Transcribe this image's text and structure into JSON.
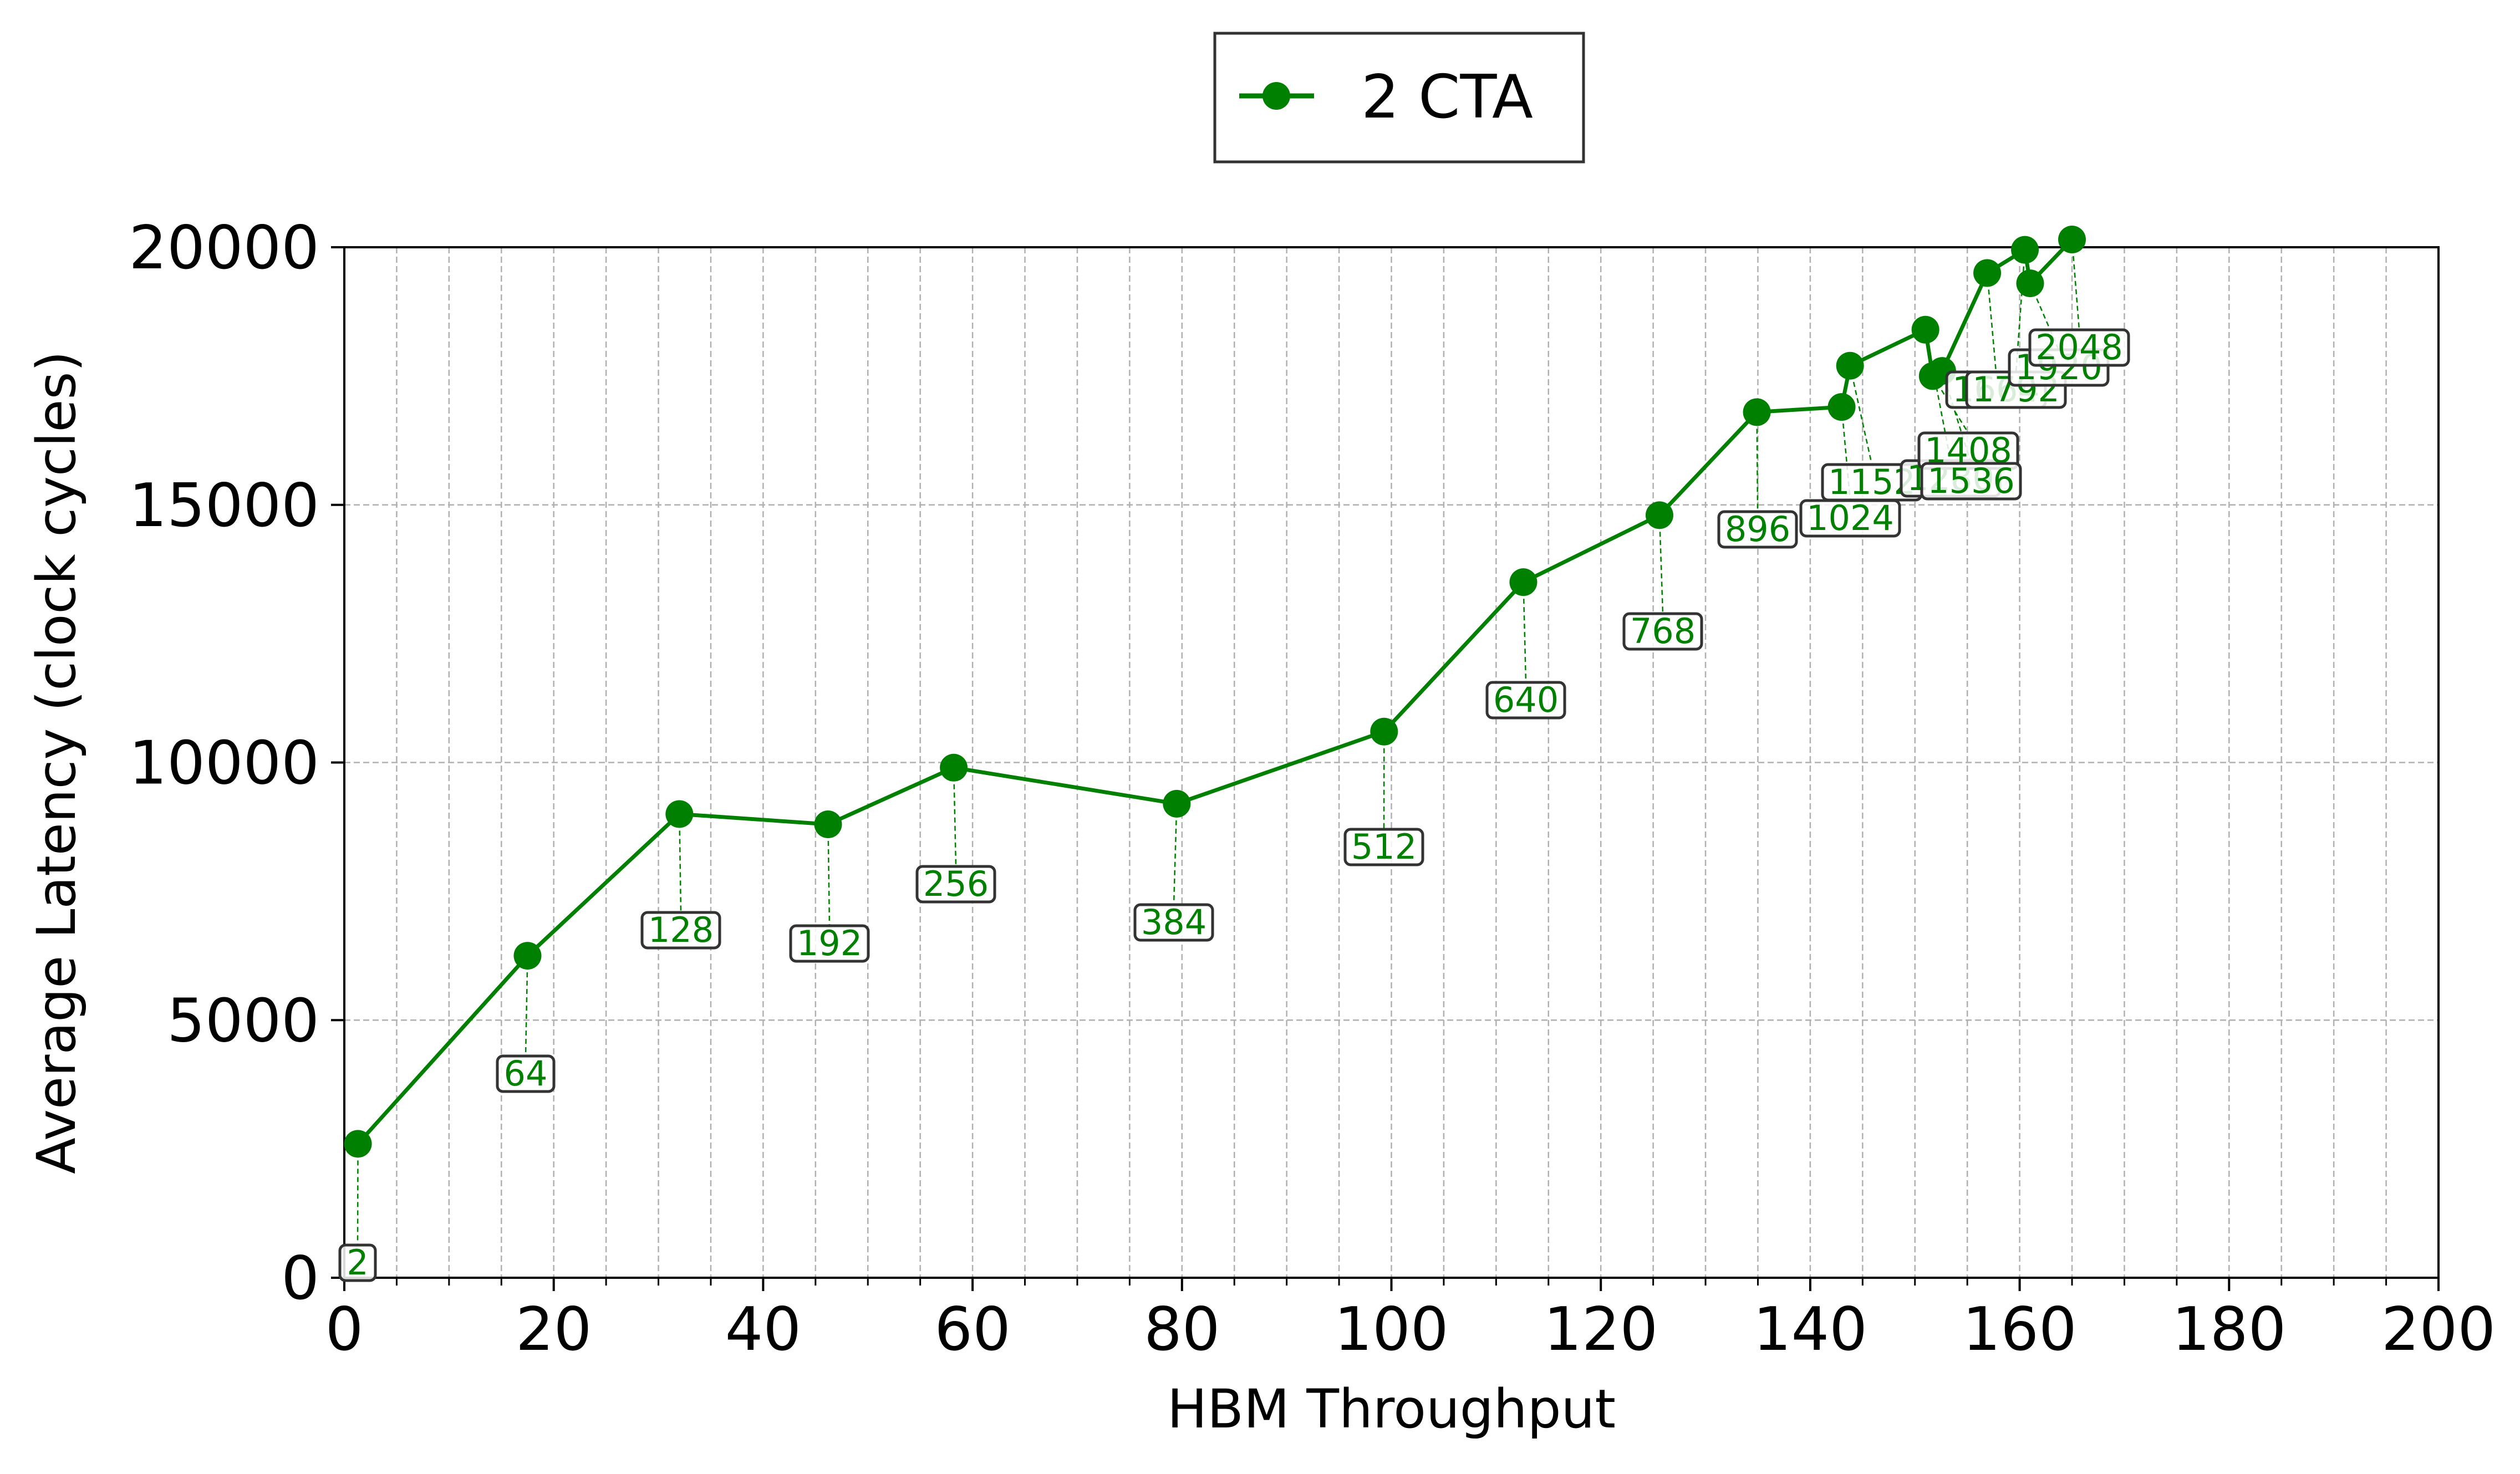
{
  "chart_data": {
    "type": "line",
    "title": "",
    "xlabel": "HBM Throughput",
    "ylabel": "Average Latency (clock cycles)",
    "xlim": [
      0,
      200
    ],
    "ylim": [
      0,
      20000
    ],
    "x_ticks": [
      0,
      20,
      40,
      60,
      80,
      100,
      120,
      140,
      160,
      180,
      200
    ],
    "y_ticks": [
      0,
      5000,
      10000,
      15000,
      20000
    ],
    "x_tick_labels": [
      "0",
      "20",
      "40",
      "60",
      "80",
      "100",
      "120",
      "140",
      "160",
      "180",
      "200"
    ],
    "y_tick_labels": [
      "0",
      "5000",
      "10000",
      "15000",
      "20000"
    ],
    "x_minor_step": 5,
    "grid": true,
    "legend_position": "top-center",
    "color": "#008000",
    "series": [
      {
        "name": "2 CTA",
        "x": [
          1.3,
          17.5,
          32.0,
          46.2,
          58.2,
          79.5,
          99.3,
          112.6,
          125.6,
          134.9,
          143.0,
          143.8,
          151.0,
          151.7,
          152.6,
          156.9,
          160.5,
          161.0,
          165.0
        ],
        "y": [
          2600,
          6250,
          9000,
          8800,
          9900,
          9200,
          10600,
          13500,
          14800,
          16800,
          16900,
          17700,
          18400,
          17500,
          17600,
          19500,
          19950,
          19300,
          20150
        ],
        "labels": [
          "2",
          "64",
          "128",
          "192",
          "256",
          "384",
          "512",
          "640",
          "768",
          "896",
          "1024",
          "1152",
          "1280",
          "1408",
          "1536",
          "1664",
          "1792",
          "1920",
          "2048"
        ]
      }
    ]
  }
}
